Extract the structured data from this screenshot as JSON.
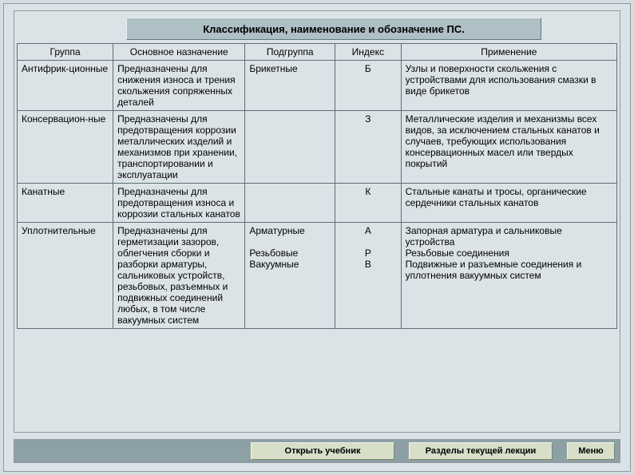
{
  "title": "Классификация, наименование и обозначение ПС.",
  "columns": [
    "Группа",
    "Основное назначение",
    "Подгруппа",
    "Индекс",
    "Применение"
  ],
  "rows": [
    {
      "group": "Антифрик-ционные",
      "purpose": "Предназначены для снижения износа и трения скольжения сопряженных деталей",
      "subgroup": "Брикетные",
      "index": "Б",
      "application": "Узлы и поверхности скольжения с устройствами для использования смазки в виде брикетов"
    },
    {
      "group": "Консервацион-ные",
      "purpose": "Предназначены для предотвращения коррозии металлических изделий и механизмов при хранении, транспортировании и эксплуатации",
      "subgroup": "",
      "index": "З",
      "application": "Металлические изделия и механизмы всех видов, за исключением стальных канатов и случаев, требующих использования консервационных масел    или твердых покрытий"
    },
    {
      "group": "Канатные",
      "purpose": "Предназначены для предотвращения износа и коррозии стальных канатов",
      "subgroup": "",
      "index": "К",
      "application": "Стальные канаты и тросы, органические сердечники стальных канатов"
    },
    {
      "group": "Уплотнительные",
      "purpose": "Предназначены для герметизации зазоров, облегчения сборки и разборки арматуры, сальниковых устройств, резьбовых, разъемных и подвижных соединений любых, в том числе вакуумных систем",
      "subgroup_lines": [
        "Арматурные",
        "",
        "Резьбовые",
        "Вакуумные"
      ],
      "index_lines": [
        "А",
        "",
        "Р",
        "В"
      ],
      "application_lines": [
        "Запорная арматура и сальниковые устройства",
        "Резьбовые соединения",
        "Подвижные и разъемные соединения и уплотнения вакуумных систем"
      ]
    }
  ],
  "buttons": {
    "open": "Открыть учебник",
    "sections": "Разделы текущей лекции",
    "menu": "Меню"
  },
  "style": {
    "page_bg": "#d6dde0",
    "panel_bg": "#dce3e6",
    "title_bg": "#aebfc6",
    "border": "#5a6f76",
    "bottom_bar_bg": "#8da0a6",
    "btn_bg": "#d8dfc9",
    "font_size_title": 13,
    "font_size_table": 12,
    "font_size_btn": 11
  }
}
